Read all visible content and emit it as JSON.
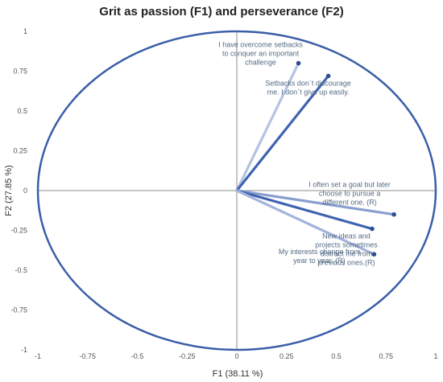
{
  "chart_data": {
    "type": "scatter",
    "title": "Grit as passion (F1) and perseverance (F2)",
    "xlabel": "F1 (38.11 %)",
    "ylabel": "F2 (27.85 %)",
    "xlim": [
      -1,
      1
    ],
    "ylim": [
      -1,
      1
    ],
    "x_ticks": [
      "-1",
      "-0.75",
      "-0.5",
      "-0.25",
      "0",
      "0.25",
      "0.5",
      "0.75",
      "1"
    ],
    "y_ticks": [
      "1",
      "0.75",
      "0.5",
      "0.25",
      "0",
      "-0.25",
      "-0.5",
      "-0.75",
      "-1"
    ],
    "unit_circle": true,
    "grid": false,
    "vectors": [
      {
        "label": [
          "I have overcome setbacks",
          "to conquer an important",
          "challenge"
        ],
        "x": 0.31,
        "y": 0.8,
        "color": "#b4c3e2"
      },
      {
        "label": [
          "Setbacks don`t discourage",
          "me. I don`t give up easily."
        ],
        "x": 0.46,
        "y": 0.72,
        "color": "#3e63b0"
      },
      {
        "label": [
          "I often set a goal but later",
          "choose to pursue a",
          "different one. (R)"
        ],
        "x": 0.79,
        "y": -0.15,
        "color": "#8a9fd0"
      },
      {
        "label": [
          "New ideas and",
          "projects sometimes",
          "distract me from",
          "previous ones.(R)"
        ],
        "x": 0.68,
        "y": -0.24,
        "color": "#3e63b0"
      },
      {
        "label": [
          "My interests change from",
          "year to year. (R)"
        ],
        "x": 0.69,
        "y": -0.4,
        "color": "#a3b3dc"
      }
    ]
  }
}
